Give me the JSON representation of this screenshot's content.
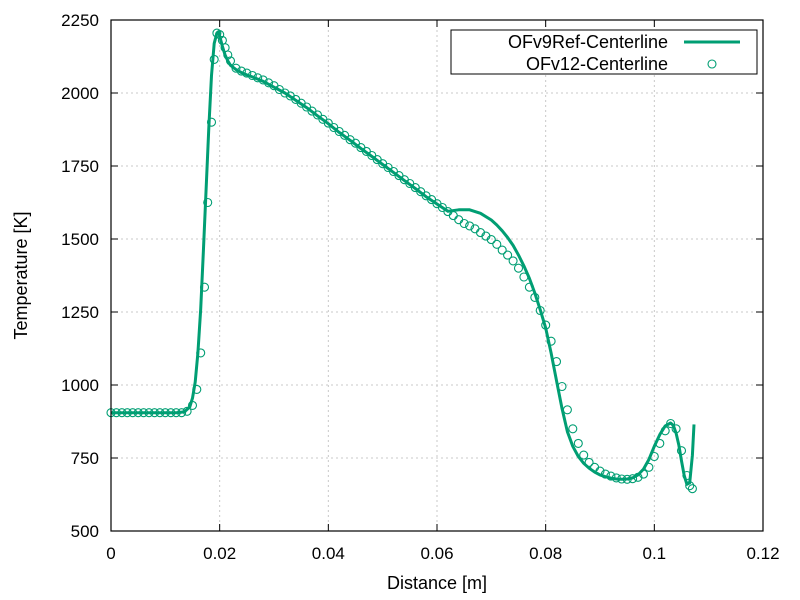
{
  "chart_data": {
    "type": "line",
    "title": "",
    "xlabel": "Distance [m]",
    "ylabel": "Temperature [K]",
    "xlim": [
      0,
      0.12
    ],
    "ylim": [
      500,
      2250
    ],
    "xticks": [
      0,
      0.02,
      0.04,
      0.06,
      0.08,
      0.1,
      0.12
    ],
    "xtick_labels": [
      "0",
      "0.02",
      "0.04",
      "0.06",
      "0.08",
      "0.1",
      "0.12"
    ],
    "yticks": [
      500,
      750,
      1000,
      1250,
      1500,
      1750,
      2000,
      2250
    ],
    "ytick_labels": [
      "500",
      "750",
      "1000",
      "1250",
      "1500",
      "1750",
      "2000",
      "2250"
    ],
    "grid": true,
    "legend_position": "top-right",
    "colors": {
      "series": "#009e73",
      "axis": "#000000",
      "grid": "#c8c8c8"
    },
    "series": [
      {
        "name": "OFv9Ref-Centerline",
        "style": "line",
        "x": [
          0,
          0.002,
          0.004,
          0.006,
          0.008,
          0.01,
          0.012,
          0.0135,
          0.0145,
          0.015,
          0.0155,
          0.016,
          0.0165,
          0.017,
          0.0175,
          0.018,
          0.0185,
          0.019,
          0.0195,
          0.0198,
          0.02,
          0.0205,
          0.021,
          0.0215,
          0.022,
          0.023,
          0.024,
          0.025,
          0.026,
          0.028,
          0.03,
          0.032,
          0.034,
          0.036,
          0.038,
          0.04,
          0.042,
          0.044,
          0.046,
          0.048,
          0.05,
          0.052,
          0.054,
          0.056,
          0.058,
          0.06,
          0.062,
          0.064,
          0.066,
          0.068,
          0.07,
          0.071,
          0.072,
          0.073,
          0.074,
          0.075,
          0.076,
          0.077,
          0.078,
          0.079,
          0.08,
          0.081,
          0.082,
          0.083,
          0.084,
          0.085,
          0.086,
          0.087,
          0.088,
          0.089,
          0.09,
          0.091,
          0.092,
          0.093,
          0.094,
          0.095,
          0.096,
          0.097,
          0.098,
          0.099,
          0.1,
          0.101,
          0.102,
          0.103,
          0.1035,
          0.104,
          0.1045,
          0.105,
          0.1055,
          0.106,
          0.1065,
          0.107,
          0.1073
        ],
        "values": [
          905,
          905,
          905,
          905,
          905,
          905,
          905,
          908,
          925,
          955,
          1010,
          1110,
          1260,
          1460,
          1670,
          1880,
          2060,
          2170,
          2205,
          2210,
          2195,
          2160,
          2130,
          2110,
          2095,
          2080,
          2070,
          2062,
          2055,
          2040,
          2020,
          2000,
          1975,
          1950,
          1922,
          1895,
          1865,
          1838,
          1810,
          1783,
          1755,
          1728,
          1700,
          1673,
          1645,
          1620,
          1595,
          1600,
          1600,
          1588,
          1565,
          1548,
          1528,
          1505,
          1478,
          1445,
          1408,
          1365,
          1315,
          1258,
          1195,
          1110,
          1015,
          920,
          840,
          790,
          755,
          732,
          715,
          702,
          692,
          686,
          681,
          678,
          677,
          678,
          682,
          692,
          712,
          745,
          790,
          830,
          860,
          870,
          862,
          835,
          795,
          740,
          690,
          660,
          665,
          760,
          865
        ]
      },
      {
        "name": "OFv12-Centerline",
        "style": "markers",
        "x": [
          0,
          0.001,
          0.002,
          0.003,
          0.004,
          0.005,
          0.006,
          0.007,
          0.008,
          0.009,
          0.01,
          0.011,
          0.012,
          0.013,
          0.014,
          0.015,
          0.0158,
          0.0165,
          0.0172,
          0.0178,
          0.0185,
          0.019,
          0.0195,
          0.02,
          0.0205,
          0.021,
          0.0215,
          0.022,
          0.023,
          0.024,
          0.025,
          0.026,
          0.027,
          0.028,
          0.029,
          0.03,
          0.031,
          0.032,
          0.033,
          0.034,
          0.035,
          0.036,
          0.037,
          0.038,
          0.039,
          0.04,
          0.041,
          0.042,
          0.043,
          0.044,
          0.045,
          0.046,
          0.047,
          0.048,
          0.049,
          0.05,
          0.051,
          0.052,
          0.053,
          0.054,
          0.055,
          0.056,
          0.057,
          0.058,
          0.059,
          0.06,
          0.061,
          0.062,
          0.063,
          0.064,
          0.065,
          0.066,
          0.067,
          0.068,
          0.069,
          0.07,
          0.071,
          0.072,
          0.073,
          0.074,
          0.075,
          0.076,
          0.077,
          0.078,
          0.079,
          0.08,
          0.081,
          0.082,
          0.083,
          0.084,
          0.085,
          0.086,
          0.087,
          0.088,
          0.089,
          0.09,
          0.091,
          0.092,
          0.093,
          0.094,
          0.095,
          0.096,
          0.097,
          0.098,
          0.099,
          0.1,
          0.101,
          0.102,
          0.103,
          0.104,
          0.105,
          0.106,
          0.1065,
          0.107
        ],
        "values": [
          905,
          905,
          905,
          905,
          905,
          905,
          905,
          905,
          905,
          905,
          905,
          905,
          905,
          905,
          910,
          930,
          985,
          1110,
          1335,
          1625,
          1900,
          2115,
          2205,
          2200,
          2180,
          2155,
          2130,
          2110,
          2085,
          2075,
          2068,
          2060,
          2052,
          2045,
          2035,
          2025,
          2012,
          2000,
          1990,
          1978,
          1965,
          1952,
          1938,
          1925,
          1910,
          1897,
          1882,
          1868,
          1855,
          1840,
          1828,
          1813,
          1800,
          1786,
          1772,
          1758,
          1745,
          1731,
          1717,
          1703,
          1690,
          1676,
          1662,
          1648,
          1635,
          1621,
          1608,
          1594,
          1580,
          1566,
          1553,
          1545,
          1535,
          1522,
          1510,
          1498,
          1482,
          1462,
          1445,
          1425,
          1400,
          1370,
          1335,
          1300,
          1255,
          1205,
          1150,
          1080,
          995,
          915,
          850,
          800,
          760,
          735,
          718,
          705,
          695,
          688,
          682,
          678,
          677,
          679,
          684,
          695,
          718,
          755,
          800,
          843,
          868,
          850,
          775,
          690,
          655,
          645
        ]
      }
    ]
  }
}
